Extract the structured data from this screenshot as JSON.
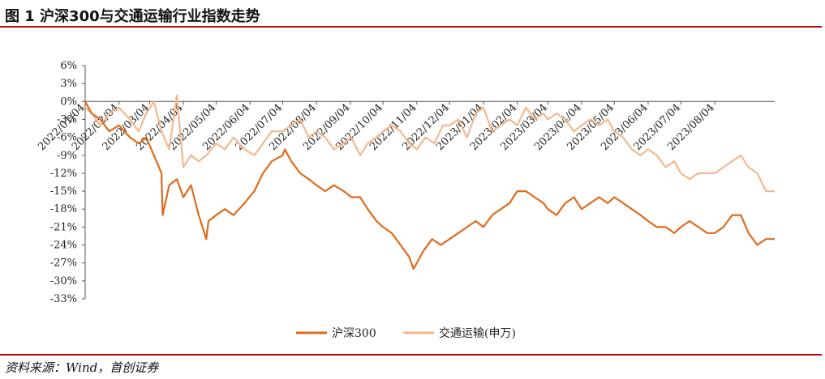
{
  "header": {
    "title": "图 1 沪深300与交通运输行业指数走势"
  },
  "footer": {
    "source": "资料来源：Wind，首创证券"
  },
  "chart_data": {
    "type": "line",
    "title": "",
    "xlabel": "",
    "ylabel": "",
    "ylim": [
      -33,
      6
    ],
    "yticks": [
      "6%",
      "3%",
      "0%",
      "-3%",
      "-6%",
      "-9%",
      "-12%",
      "-15%",
      "-18%",
      "-21%",
      "-24%",
      "-27%",
      "-30%",
      "-33%"
    ],
    "xticks": [
      "2022/01/04",
      "2022/02/04",
      "2022/03/04",
      "2022/04/04",
      "2022/05/04",
      "2022/06/04",
      "2022/07/04",
      "2022/08/04",
      "2022/09/04",
      "2022/10/04",
      "2022/11/04",
      "2022/12/04",
      "2023/01/04",
      "2023/02/04",
      "2023/03/04",
      "2023/04/04",
      "2023/05/04",
      "2023/06/04",
      "2023/07/04",
      "2023/08/04"
    ],
    "x_range": [
      "2022/01/04",
      "2023/09/28"
    ],
    "grid": false,
    "legend": "bottom-center",
    "series": [
      {
        "name": "沪深300",
        "color": "#e06a1b",
        "x": [
          "2022/01/04",
          "2022/01/10",
          "2022/01/18",
          "2022/01/26",
          "2022/02/04",
          "2022/02/14",
          "2022/02/22",
          "2022/03/01",
          "2022/03/08",
          "2022/03/15",
          "2022/03/16",
          "2022/03/22",
          "2022/03/29",
          "2022/04/04",
          "2022/04/11",
          "2022/04/18",
          "2022/04/25",
          "2022/04/27",
          "2022/05/04",
          "2022/05/12",
          "2022/05/20",
          "2022/05/30",
          "2022/06/08",
          "2022/06/16",
          "2022/06/24",
          "2022/07/04",
          "2022/07/06",
          "2022/07/12",
          "2022/07/20",
          "2022/07/28",
          "2022/08/04",
          "2022/08/12",
          "2022/08/20",
          "2022/08/29",
          "2022/09/05",
          "2022/09/13",
          "2022/09/20",
          "2022/09/28",
          "2022/10/04",
          "2022/10/12",
          "2022/10/20",
          "2022/10/28",
          "2022/11/01",
          "2022/11/10",
          "2022/11/18",
          "2022/11/26",
          "2022/12/04",
          "2022/12/12",
          "2022/12/20",
          "2022/12/28",
          "2023/01/04",
          "2023/01/12",
          "2023/01/20",
          "2023/01/28",
          "2023/02/04",
          "2023/02/12",
          "2023/02/20",
          "2023/02/28",
          "2023/03/04",
          "2023/03/12",
          "2023/03/20",
          "2023/03/28",
          "2023/04/04",
          "2023/04/12",
          "2023/04/20",
          "2023/04/28",
          "2023/05/04",
          "2023/05/12",
          "2023/05/20",
          "2023/05/28",
          "2023/06/04",
          "2023/06/12",
          "2023/06/20",
          "2023/06/28",
          "2023/07/04",
          "2023/07/12",
          "2023/07/20",
          "2023/07/28",
          "2023/08/04",
          "2023/08/12",
          "2023/08/20",
          "2023/08/28",
          "2023/09/04",
          "2023/09/12",
          "2023/09/20",
          "2023/09/28"
        ],
        "values": [
          0,
          -2,
          -3,
          -5,
          -4,
          -6,
          -7,
          -6,
          -9,
          -12,
          -19,
          -14,
          -13,
          -16,
          -14,
          -19,
          -23,
          -20,
          -19,
          -18,
          -19,
          -17,
          -15,
          -12,
          -10,
          -9,
          -8,
          -10,
          -12,
          -13,
          -14,
          -15,
          -14,
          -15,
          -16,
          -16,
          -18,
          -20,
          -21,
          -22,
          -24,
          -26,
          -28,
          -25,
          -23,
          -24,
          -23,
          -22,
          -21,
          -20,
          -21,
          -19,
          -18,
          -17,
          -15,
          -15,
          -16,
          -17,
          -18,
          -19,
          -17,
          -16,
          -18,
          -17,
          -16,
          -17,
          -16,
          -17,
          -18,
          -19,
          -20,
          -21,
          -21,
          -22,
          -21,
          -20,
          -21,
          -22,
          -22,
          -21,
          -19,
          -19,
          -22,
          -24,
          -23,
          -23
        ]
      },
      {
        "name": "交通运输(申万)",
        "color": "#f5b88e",
        "x": [
          "2022/01/04",
          "2022/01/10",
          "2022/01/18",
          "2022/01/26",
          "2022/02/04",
          "2022/02/14",
          "2022/02/22",
          "2022/03/01",
          "2022/03/08",
          "2022/03/15",
          "2022/03/22",
          "2022/03/29",
          "2022/04/04",
          "2022/04/11",
          "2022/04/18",
          "2022/04/25",
          "2022/05/04",
          "2022/05/12",
          "2022/05/20",
          "2022/05/30",
          "2022/06/08",
          "2022/06/16",
          "2022/06/24",
          "2022/07/04",
          "2022/07/12",
          "2022/07/20",
          "2022/07/28",
          "2022/08/04",
          "2022/08/12",
          "2022/08/20",
          "2022/08/29",
          "2022/09/05",
          "2022/09/13",
          "2022/09/20",
          "2022/09/28",
          "2022/10/04",
          "2022/10/12",
          "2022/10/20",
          "2022/10/28",
          "2022/11/04",
          "2022/11/12",
          "2022/11/20",
          "2022/11/28",
          "2022/12/04",
          "2022/12/12",
          "2022/12/20",
          "2022/12/28",
          "2023/01/04",
          "2023/01/12",
          "2023/01/20",
          "2023/01/28",
          "2023/02/04",
          "2023/02/12",
          "2023/02/20",
          "2023/02/28",
          "2023/03/04",
          "2023/03/12",
          "2023/03/20",
          "2023/03/28",
          "2023/04/04",
          "2023/04/12",
          "2023/04/20",
          "2023/04/28",
          "2023/05/04",
          "2023/05/12",
          "2023/05/20",
          "2023/05/28",
          "2023/06/04",
          "2023/06/12",
          "2023/06/20",
          "2023/06/28",
          "2023/07/04",
          "2023/07/12",
          "2023/07/20",
          "2023/07/28",
          "2023/08/04",
          "2023/08/12",
          "2023/08/20",
          "2023/08/28",
          "2023/09/04",
          "2023/09/12",
          "2023/09/20",
          "2023/09/28"
        ],
        "values": [
          -1,
          -2,
          -4,
          -2,
          -1,
          -3,
          -5,
          -2,
          0,
          -5,
          -8,
          1,
          -11,
          -9,
          -10,
          -9,
          -7,
          -8,
          -6,
          -8,
          -9,
          -7,
          -5,
          -5,
          -4,
          -3,
          -6,
          -5,
          -6,
          -8,
          -7,
          -6,
          -9,
          -7,
          -6,
          -5,
          -4,
          -5,
          -7,
          -8,
          -6,
          -7,
          -4,
          -4,
          -3,
          -6,
          -2,
          -1,
          -5,
          -4,
          -3,
          -4,
          -1,
          -3,
          -2,
          -3,
          -2,
          -3,
          -5,
          -4,
          -3,
          -4,
          -3,
          -5,
          -6,
          -8,
          -9,
          -8,
          -9,
          -11,
          -10,
          -12,
          -13,
          -12,
          -12,
          -12,
          -11,
          -10,
          -9,
          -11,
          -12,
          -15,
          -15
        ]
      }
    ]
  }
}
